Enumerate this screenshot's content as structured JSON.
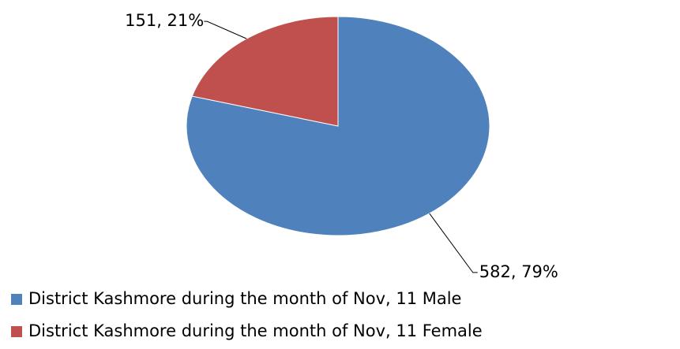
{
  "chart_data": {
    "type": "pie",
    "categories": [
      "District Kashmore during the month of Nov, 11 Male",
      "District Kashmore during the month of Nov, 11 Female"
    ],
    "values": [
      582,
      151
    ],
    "value_labels": [
      "582, 79%",
      "151, 21%"
    ],
    "colors": [
      "#4f81bd",
      "#c0504d"
    ],
    "legend": "bottom"
  }
}
